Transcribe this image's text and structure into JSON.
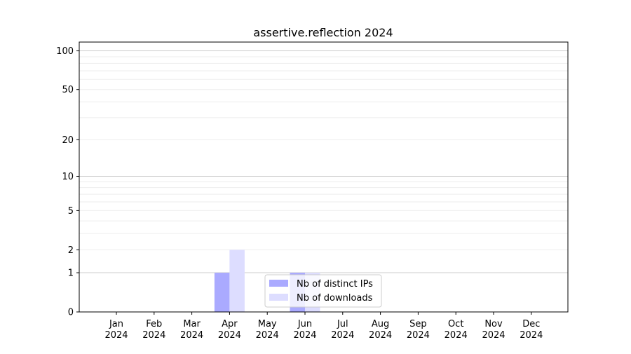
{
  "chart_data": {
    "type": "bar",
    "title": "assertive.reflection 2024",
    "xlabel": "",
    "ylabel": "",
    "y_scale": "log(1+y)",
    "ylim": [
      0,
      117
    ],
    "yticks": [
      0,
      1,
      2,
      5,
      10,
      20,
      50,
      100
    ],
    "grid": true,
    "legend_position": "lower-center",
    "categories": [
      "Jan\n2024",
      "Feb\n2024",
      "Mar\n2024",
      "Apr\n2024",
      "May\n2024",
      "Jun\n2024",
      "Jul\n2024",
      "Aug\n2024",
      "Sep\n2024",
      "Oct\n2024",
      "Nov\n2024",
      "Dec\n2024"
    ],
    "series": [
      {
        "name": "Nb of distinct IPs",
        "color": "#aaaaff",
        "values": [
          0,
          0,
          0,
          1,
          0,
          1,
          0,
          0,
          0,
          0,
          0,
          0
        ]
      },
      {
        "name": "Nb of downloads",
        "color": "#ddddff",
        "values": [
          0,
          0,
          0,
          2,
          0,
          1,
          0,
          0,
          0,
          0,
          0,
          0
        ]
      }
    ]
  }
}
